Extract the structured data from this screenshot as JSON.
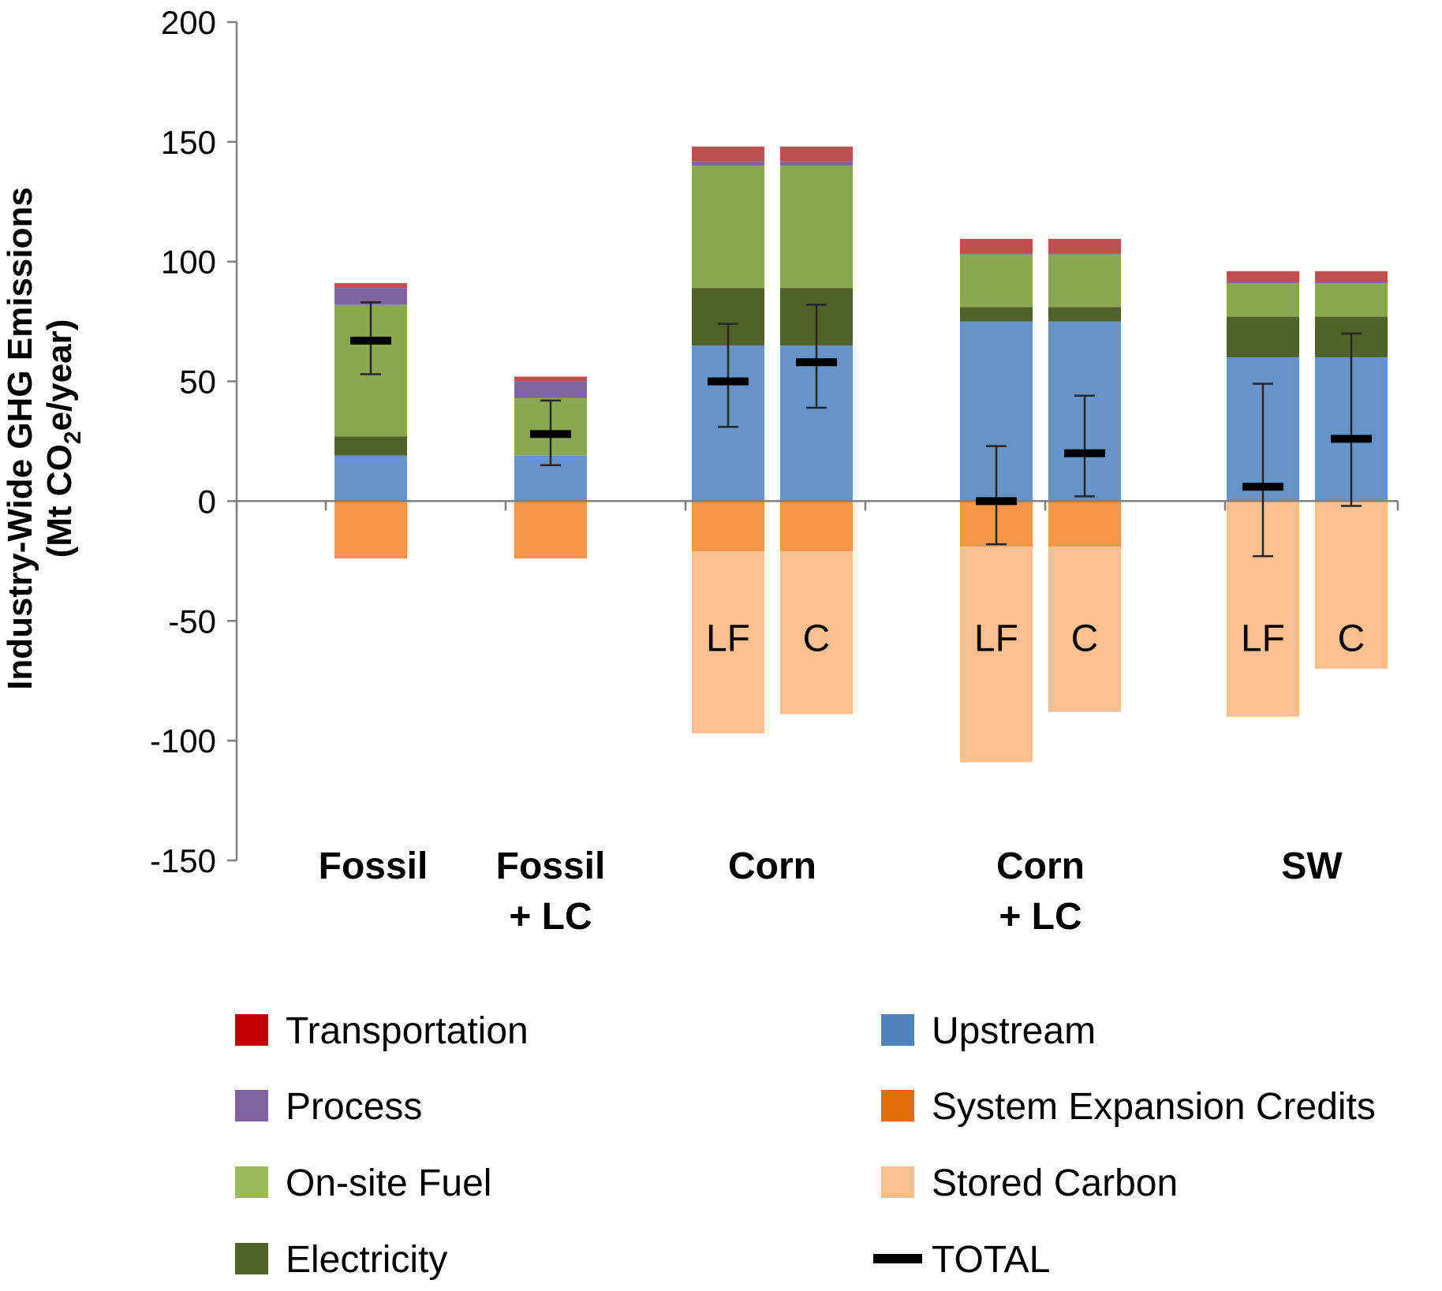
{
  "chart_data": {
    "type": "bar",
    "stacked": true,
    "ylabel_line1": "Industry-Wide GHG Emissions",
    "ylabel_line2_pre": "(Mt CO",
    "ylabel_line2_sub": "2",
    "ylabel_line2_post": "e/year)",
    "ylim": [
      -150,
      200
    ],
    "yticks": [
      200,
      150,
      100,
      50,
      0,
      -50,
      -100,
      -150
    ],
    "ytick_labels": [
      "200",
      "150",
      "100",
      "50",
      "0",
      "-50",
      "-100",
      "-150"
    ],
    "series_order": [
      "Upstream",
      "Electricity",
      "On-site Fuel",
      "Process",
      "Transportation",
      "System Expansion Credits",
      "Stored Carbon"
    ],
    "colors": {
      "Transportation": "#c0504d",
      "Process": "#8064a2",
      "On-site Fuel": "#8ba851",
      "Electricity": "#4f6228",
      "Upstream": "#6694c8",
      "System Expansion Credits": "#f79646",
      "Stored Carbon": "#fac090",
      "TOTAL": "#000000"
    },
    "legend_colors": {
      "Transportation": "#c00000",
      "Process": "#8064a2",
      "On-site Fuel": "#9bbb59",
      "Electricity": "#4f6228",
      "Upstream": "#4f81bd",
      "System Expansion Credits": "#e36c09",
      "Stored Carbon": "#fac090",
      "TOTAL": "#000000"
    },
    "groups": [
      {
        "label_lines": [
          "Fossil"
        ]
      },
      {
        "label_lines": [
          "Fossil",
          "+ LC"
        ]
      },
      {
        "label_lines": [
          "Corn"
        ]
      },
      {
        "label_lines": [
          "Corn",
          "+ LC"
        ]
      },
      {
        "label_lines": [
          "SW"
        ]
      }
    ],
    "bars": [
      {
        "group": 0,
        "label": "",
        "Upstream": 19,
        "Electricity": 8,
        "On-site Fuel": 55,
        "Process": 7,
        "Transportation": 2,
        "System Expansion Credits": -24,
        "Stored Carbon": 0,
        "total": 67,
        "err_low": 53,
        "err_high": 83
      },
      {
        "group": 1,
        "label": "",
        "Upstream": 19,
        "Electricity": 0,
        "On-site Fuel": 24,
        "Process": 7,
        "Transportation": 2,
        "System Expansion Credits": -24,
        "Stored Carbon": 0,
        "total": 28,
        "err_low": 15,
        "err_high": 42
      },
      {
        "group": 2,
        "label": "LF",
        "Upstream": 65,
        "Electricity": 24,
        "On-site Fuel": 51,
        "Process": 2,
        "Transportation": 6,
        "System Expansion Credits": -21,
        "Stored Carbon": -76,
        "total": 50,
        "err_low": 31,
        "err_high": 74
      },
      {
        "group": 2,
        "label": "C",
        "Upstream": 65,
        "Electricity": 24,
        "On-site Fuel": 51,
        "Process": 2,
        "Transportation": 6,
        "System Expansion Credits": -21,
        "Stored Carbon": -68,
        "total": 58,
        "err_low": 39,
        "err_high": 82
      },
      {
        "group": 3,
        "label": "LF",
        "Upstream": 75,
        "Electricity": 6,
        "On-site Fuel": 22,
        "Process": 0.5,
        "Transportation": 6,
        "System Expansion Credits": -19,
        "Stored Carbon": -90,
        "total": 0,
        "err_low": -18,
        "err_high": 23
      },
      {
        "group": 3,
        "label": "C",
        "Upstream": 75,
        "Electricity": 6,
        "On-site Fuel": 22,
        "Process": 0.5,
        "Transportation": 6,
        "System Expansion Credits": -19,
        "Stored Carbon": -69,
        "total": 20,
        "err_low": 2,
        "err_high": 44
      },
      {
        "group": 4,
        "label": "LF",
        "Upstream": 60,
        "Electricity": 17,
        "On-site Fuel": 14,
        "Process": 0.5,
        "Transportation": 4.5,
        "System Expansion Credits": 0,
        "Stored Carbon": -90,
        "total": 6,
        "err_low": -23,
        "err_high": 49
      },
      {
        "group": 4,
        "label": "C",
        "Upstream": 60,
        "Electricity": 17,
        "On-site Fuel": 14,
        "Process": 0.5,
        "Transportation": 4.5,
        "System Expansion Credits": 0,
        "Stored Carbon": -70,
        "total": 26,
        "err_low": -2,
        "err_high": 70
      }
    ],
    "legend": [
      {
        "name": "Transportation",
        "kind": "box"
      },
      {
        "name": "Process",
        "kind": "box"
      },
      {
        "name": "On-site Fuel",
        "kind": "box"
      },
      {
        "name": "Electricity",
        "kind": "box"
      },
      {
        "name": "Upstream",
        "kind": "box"
      },
      {
        "name": "System Expansion Credits",
        "kind": "box"
      },
      {
        "name": "Stored Carbon",
        "kind": "box"
      },
      {
        "name": "TOTAL",
        "kind": "line"
      }
    ],
    "legend_placement": "bottom"
  }
}
